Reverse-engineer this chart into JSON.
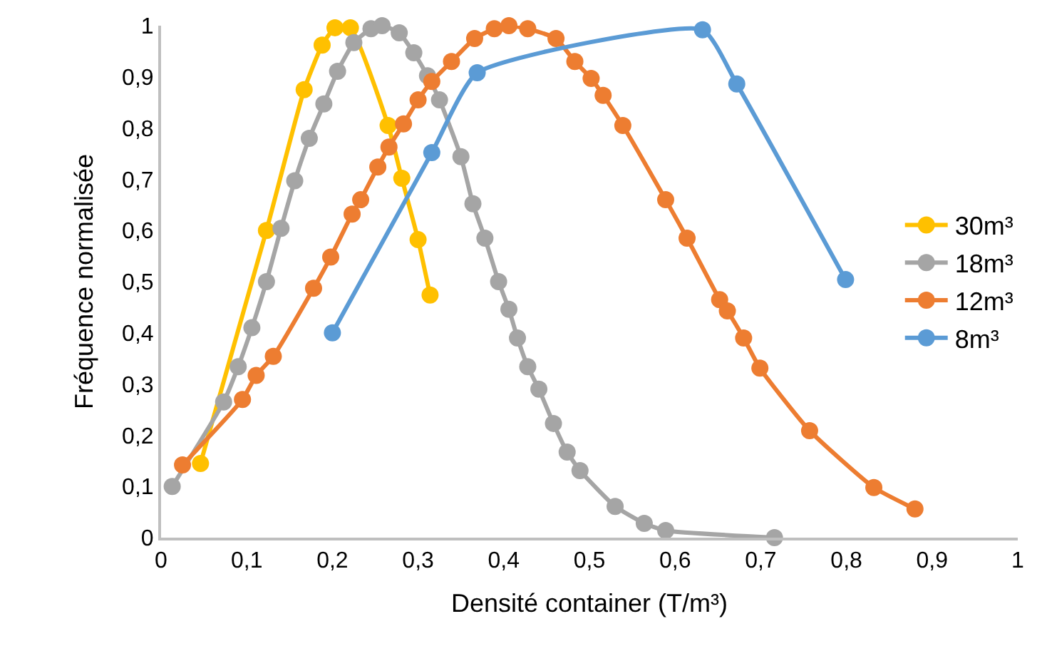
{
  "chart_data": {
    "type": "line",
    "xlabel": "Densité container (T/m³)",
    "ylabel": "Fréquence normalisée",
    "xlim": [
      0,
      1
    ],
    "ylim": [
      0,
      1
    ],
    "xticks": [
      0,
      {
        "value": 0.1,
        "label": "0,1"
      },
      {
        "value": 0.2,
        "label": "0,2"
      },
      {
        "value": 0.3,
        "label": "0,3"
      },
      {
        "value": 0.4,
        "label": "0,4"
      },
      {
        "value": 0.5,
        "label": "0,5"
      },
      {
        "value": 0.6,
        "label": "0,6"
      },
      {
        "value": 0.7,
        "label": "0,7"
      },
      {
        "value": 0.8,
        "label": "0,8"
      },
      {
        "value": 0.9,
        "label": "0,9"
      },
      1
    ],
    "yticks": [
      0,
      {
        "value": 0.1,
        "label": "0,1"
      },
      {
        "value": 0.2,
        "label": "0,2"
      },
      {
        "value": 0.3,
        "label": "0,3"
      },
      {
        "value": 0.4,
        "label": "0,4"
      },
      {
        "value": 0.5,
        "label": "0,5"
      },
      {
        "value": 0.6,
        "label": "0,6"
      },
      {
        "value": 0.7,
        "label": "0,7"
      },
      {
        "value": 0.8,
        "label": "0,8"
      },
      {
        "value": 0.9,
        "label": "0,9"
      },
      1
    ],
    "legend": "right",
    "marker": "circle",
    "line_style": "solid",
    "series": [
      {
        "name": "30m³",
        "color": "#ffc000",
        "x": [
          0.046,
          0.123,
          0.167,
          0.188,
          0.203,
          0.221,
          0.265,
          0.281,
          0.3,
          0.314
        ],
        "values": [
          0.145,
          0.6,
          0.875,
          0.962,
          0.996,
          0.996,
          0.805,
          0.702,
          0.582,
          0.474
        ]
      },
      {
        "name": "18m³",
        "color": "#a5a5a5",
        "x": [
          0.013,
          0.073,
          0.09,
          0.106,
          0.123,
          0.14,
          0.156,
          0.173,
          0.19,
          0.206,
          0.225,
          0.245,
          0.258,
          0.278,
          0.295,
          0.311,
          0.325,
          0.35,
          0.364,
          0.378,
          0.394,
          0.406,
          0.416,
          0.428,
          0.441,
          0.458,
          0.474,
          0.489,
          0.53,
          0.564,
          0.589,
          0.716
        ],
        "values": [
          0.1,
          0.265,
          0.334,
          0.41,
          0.5,
          0.604,
          0.697,
          0.78,
          0.847,
          0.911,
          0.967,
          0.994,
          1.0,
          0.986,
          0.947,
          0.902,
          0.855,
          0.744,
          0.652,
          0.585,
          0.5,
          0.446,
          0.39,
          0.334,
          0.29,
          0.223,
          0.167,
          0.131,
          0.061,
          0.028,
          0.014,
          0
        ]
      },
      {
        "name": "12m³",
        "color": "#ed7d31",
        "x": [
          0.025,
          0.095,
          0.111,
          0.131,
          0.178,
          0.198,
          0.223,
          0.233,
          0.253,
          0.266,
          0.283,
          0.3,
          0.316,
          0.339,
          0.366,
          0.389,
          0.406,
          0.428,
          0.461,
          0.483,
          0.502,
          0.516,
          0.539,
          0.589,
          0.614,
          0.652,
          0.661,
          0.68,
          0.699,
          0.757,
          0.832,
          0.88
        ],
        "values": [
          0.142,
          0.27,
          0.317,
          0.354,
          0.487,
          0.548,
          0.632,
          0.66,
          0.724,
          0.763,
          0.808,
          0.855,
          0.891,
          0.93,
          0.975,
          0.994,
          1.0,
          0.994,
          0.975,
          0.93,
          0.897,
          0.864,
          0.805,
          0.66,
          0.585,
          0.465,
          0.443,
          0.39,
          0.331,
          0.209,
          0.098,
          0.056
        ]
      },
      {
        "name": "8m³",
        "color": "#5b9bd5",
        "x": [
          0.2,
          0.316,
          0.369,
          0.632,
          0.672,
          0.799
        ],
        "values": [
          0.4,
          0.752,
          0.908,
          0.992,
          0.886,
          0.504
        ]
      }
    ]
  }
}
